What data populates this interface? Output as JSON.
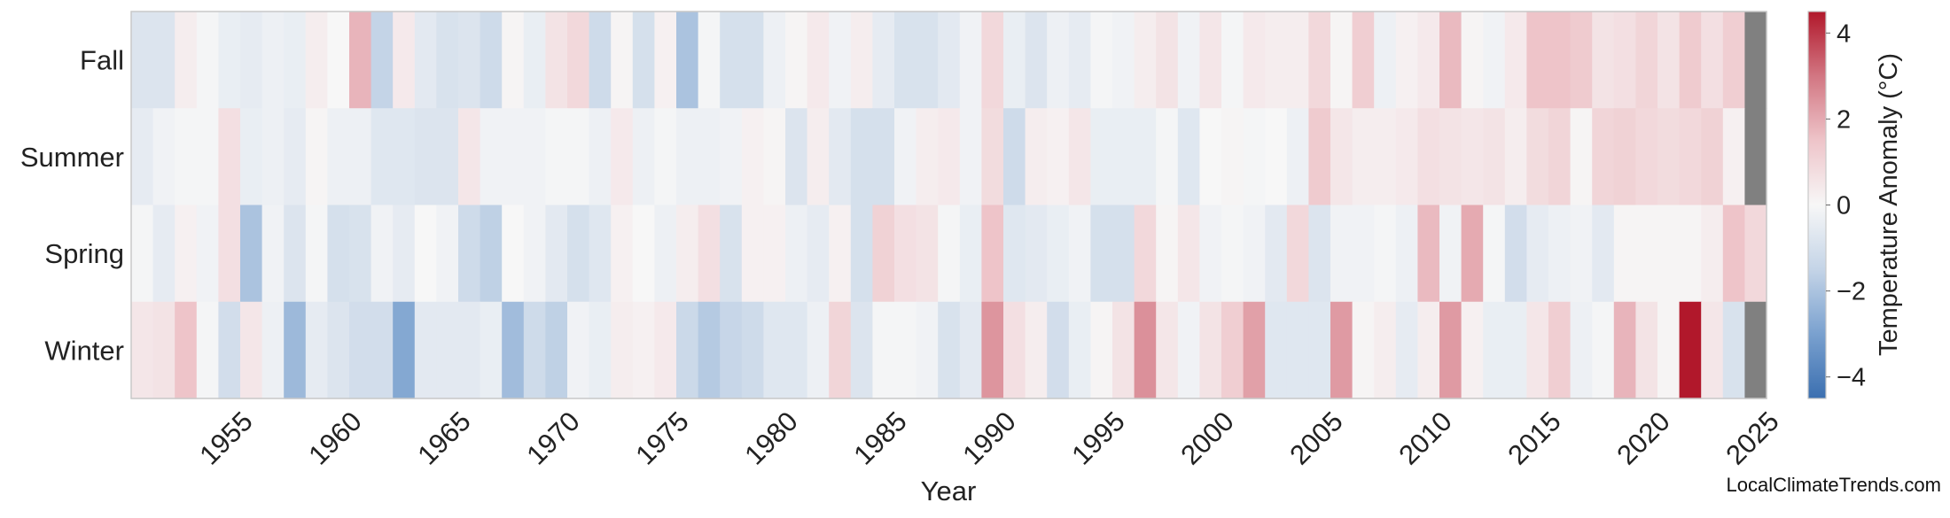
{
  "chart_data": {
    "type": "heatmap",
    "xlabel": "Year",
    "ylabel": "",
    "seasons": [
      "Fall",
      "Summer",
      "Spring",
      "Winter"
    ],
    "year_start": 1951,
    "year_end": 2025,
    "x_ticks": [
      1955,
      1960,
      1965,
      1970,
      1975,
      1980,
      1985,
      1990,
      1995,
      2000,
      2005,
      2010,
      2015,
      2020,
      2025
    ],
    "colorbar": {
      "label": "Temperature Anomaly (°C)",
      "range": [
        -4.5,
        4.5
      ],
      "ticks": [
        4,
        2,
        0,
        -2,
        -4
      ],
      "tick_labels": [
        "4",
        "2",
        "0",
        "−2",
        "−4"
      ],
      "colors": [
        "#3b6fb0",
        "#7aa1cf",
        "#c4d4e7",
        "#f7f7f7",
        "#eec4c9",
        "#d27682",
        "#b1182b"
      ],
      "missing_color": "#808080"
    },
    "series": [
      {
        "name": "Fall",
        "values": [
          -0.8,
          -0.8,
          0.3,
          -0.1,
          -0.4,
          -0.5,
          -0.3,
          -0.4,
          0.3,
          0.0,
          1.8,
          -1.5,
          0.4,
          -0.6,
          -0.9,
          -0.8,
          -1.2,
          0.1,
          -0.4,
          0.6,
          0.9,
          -1.2,
          0.1,
          -1.0,
          0.2,
          -2.0,
          -0.1,
          -1.0,
          -1.0,
          -0.3,
          0.1,
          0.4,
          -0.2,
          0.3,
          -0.5,
          -0.9,
          -0.9,
          -0.6,
          -0.2,
          0.9,
          -0.4,
          -0.8,
          -0.3,
          -0.5,
          -0.1,
          -0.2,
          0.3,
          0.6,
          -0.2,
          0.5,
          -0.1,
          0.4,
          0.3,
          0.3,
          0.9,
          0.1,
          1.2,
          -0.3,
          0.2,
          0.4,
          1.7,
          0.1,
          -0.2,
          0.4,
          1.5,
          1.5,
          1.3,
          0.6,
          0.7,
          1.0,
          0.6,
          1.3,
          0.7,
          1.2,
          null
        ]
      },
      {
        "name": "Summer",
        "values": [
          -0.5,
          -0.2,
          -0.1,
          -0.1,
          0.7,
          -0.4,
          -0.3,
          -0.5,
          0.1,
          -0.3,
          -0.3,
          -0.7,
          -0.7,
          -0.8,
          -0.8,
          0.5,
          -0.2,
          -0.2,
          -0.2,
          -0.1,
          -0.1,
          -0.3,
          0.4,
          -0.3,
          -0.1,
          -0.3,
          -0.3,
          -0.2,
          0.2,
          0.1,
          -0.8,
          0.3,
          -0.6,
          -1.0,
          -1.0,
          -0.2,
          0.3,
          0.4,
          -0.2,
          0.8,
          -1.2,
          0.3,
          0.2,
          0.5,
          -0.4,
          -0.4,
          -0.4,
          -0.1,
          -0.7,
          0.0,
          0.1,
          -0.1,
          0.0,
          -0.3,
          1.3,
          0.5,
          0.3,
          0.3,
          0.4,
          0.7,
          0.6,
          0.5,
          0.6,
          0.3,
          0.8,
          1.0,
          0.1,
          1.0,
          1.1,
          0.9,
          0.8,
          0.9,
          1.1,
          0.2,
          null
        ]
      },
      {
        "name": "Spring",
        "values": [
          -0.1,
          -0.5,
          0.2,
          -0.2,
          0.7,
          -2.0,
          -0.2,
          -0.8,
          -0.1,
          -1.0,
          -0.9,
          -0.2,
          -0.5,
          0.0,
          -0.2,
          -1.2,
          -1.6,
          0.0,
          -0.2,
          -0.6,
          -1.0,
          -0.7,
          0.2,
          0.0,
          -0.3,
          0.3,
          0.7,
          -0.9,
          0.2,
          0.2,
          -0.3,
          -0.5,
          0.2,
          -1.0,
          1.1,
          0.7,
          0.6,
          -0.1,
          -0.4,
          1.5,
          -0.7,
          -0.6,
          -0.4,
          -0.2,
          -1.0,
          -1.0,
          0.9,
          0.1,
          0.5,
          -0.2,
          -0.1,
          -0.2,
          -0.6,
          0.9,
          -0.8,
          -0.2,
          -0.2,
          -0.1,
          -0.3,
          1.7,
          -0.2,
          2.0,
          -0.1,
          -1.1,
          -0.5,
          -0.3,
          -0.2,
          -0.6,
          0.1,
          0.1,
          0.1,
          0.1,
          0.3,
          1.5,
          0.9
        ]
      },
      {
        "name": "Winter",
        "values": [
          0.5,
          0.6,
          1.5,
          -0.1,
          -1.1,
          0.5,
          -0.3,
          -2.3,
          -0.5,
          -0.8,
          -1.1,
          -1.1,
          -2.8,
          -0.6,
          -0.6,
          -0.6,
          -0.4,
          -2.2,
          -1.2,
          -1.6,
          -0.2,
          -0.4,
          0.3,
          0.2,
          0.4,
          -1.3,
          -1.8,
          -1.4,
          -1.2,
          -0.7,
          -0.7,
          -0.3,
          1.0,
          -0.8,
          -0.1,
          -0.1,
          -0.2,
          -0.9,
          -0.6,
          2.4,
          0.7,
          0.3,
          -1.1,
          -0.4,
          0.1,
          0.6,
          2.5,
          0.5,
          -0.2,
          0.6,
          1.2,
          2.2,
          -0.7,
          -0.7,
          -0.7,
          2.3,
          0.1,
          0.3,
          -0.5,
          0.3,
          2.3,
          0.2,
          -0.4,
          -0.4,
          0.5,
          1.2,
          -0.3,
          -0.1,
          1.8,
          0.6,
          0.1,
          4.5,
          0.5,
          -0.9,
          null
        ]
      }
    ],
    "watermark": "LocalClimateTrends.com"
  }
}
